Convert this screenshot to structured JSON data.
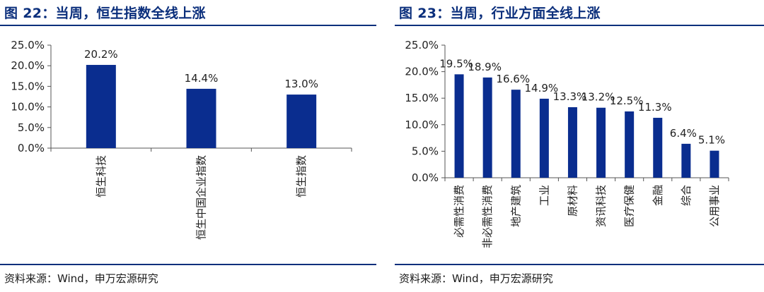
{
  "left": {
    "title": "图 22：当周，恒生指数全线上涨",
    "source": "资料来源：Wind，申万宏源研究"
  },
  "right": {
    "title": "图 23：当周，行业方面全线上涨",
    "source": "资料来源：Wind，申万宏源研究"
  },
  "colors": {
    "bar": "#0a2d8f",
    "accent": "#0b2f7c"
  },
  "chart_data": [
    {
      "type": "bar",
      "title": "图 22：当周，恒生指数全线上涨",
      "categories": [
        "恒生科技",
        "恒生中国企业指数",
        "恒生指数"
      ],
      "values": [
        20.2,
        14.4,
        13.0
      ],
      "value_labels": [
        "20.2%",
        "14.4%",
        "13.0%"
      ],
      "ylim": [
        0,
        25
      ],
      "yticks": [
        "0.0%",
        "5.0%",
        "10.0%",
        "15.0%",
        "20.0%",
        "25.0%"
      ],
      "grid": false,
      "legend": "none"
    },
    {
      "type": "bar",
      "title": "图 23：当周，行业方面全线上涨",
      "categories": [
        "必需性消费",
        "非必需性消费",
        "地产建筑",
        "工业",
        "原材料",
        "资讯科技",
        "医疗保健",
        "金融",
        "综合",
        "公用事业"
      ],
      "values": [
        19.5,
        18.9,
        16.6,
        14.9,
        13.3,
        13.2,
        12.5,
        11.3,
        6.4,
        5.1
      ],
      "value_labels": [
        "19.5%",
        "18.9%",
        "16.6%",
        "14.9%",
        "13.3%",
        "13.2%",
        "12.5%",
        "11.3%",
        "6.4%",
        "5.1%"
      ],
      "ylim": [
        0,
        25
      ],
      "yticks": [
        "0.0%",
        "5.0%",
        "10.0%",
        "15.0%",
        "20.0%",
        "25.0%"
      ],
      "grid": false,
      "legend": "none"
    }
  ]
}
